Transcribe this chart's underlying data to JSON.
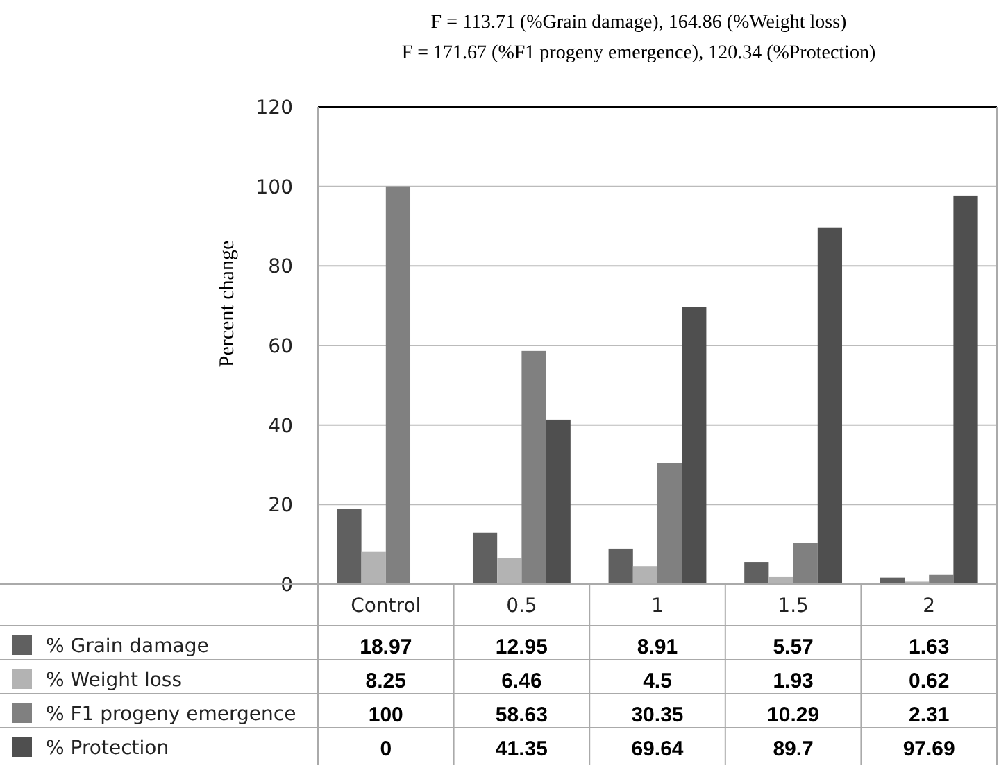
{
  "chart_data": {
    "type": "bar",
    "title": "F = 113.71 (%Grain damage), 164.86 (%Weight loss)",
    "subtitle": "F = 171.67 (%F1 progeny emergence), 120.34 (%Protection)",
    "ylabel": "Percent change",
    "categories": [
      "Control",
      "0.5",
      "1",
      "1.5",
      "2"
    ],
    "series": [
      {
        "name": "% Grain damage",
        "color": "#606060",
        "values": [
          18.97,
          12.95,
          8.91,
          5.57,
          1.63
        ]
      },
      {
        "name": "% Weight loss",
        "color": "#b3b3b3",
        "values": [
          8.25,
          6.46,
          4.5,
          1.93,
          0.62
        ]
      },
      {
        "name": "% F1 progeny emergence",
        "color": "#808080",
        "values": [
          100,
          58.63,
          30.35,
          10.29,
          2.31
        ]
      },
      {
        "name": "% Protection",
        "color": "#4f4f4f",
        "values": [
          0,
          41.35,
          69.64,
          89.7,
          97.69
        ]
      }
    ],
    "ylim": [
      0,
      120
    ],
    "yticks": [
      0,
      20,
      40,
      60,
      80,
      100,
      120
    ],
    "grid": "y",
    "legend": "bottom",
    "data_labels": true
  }
}
